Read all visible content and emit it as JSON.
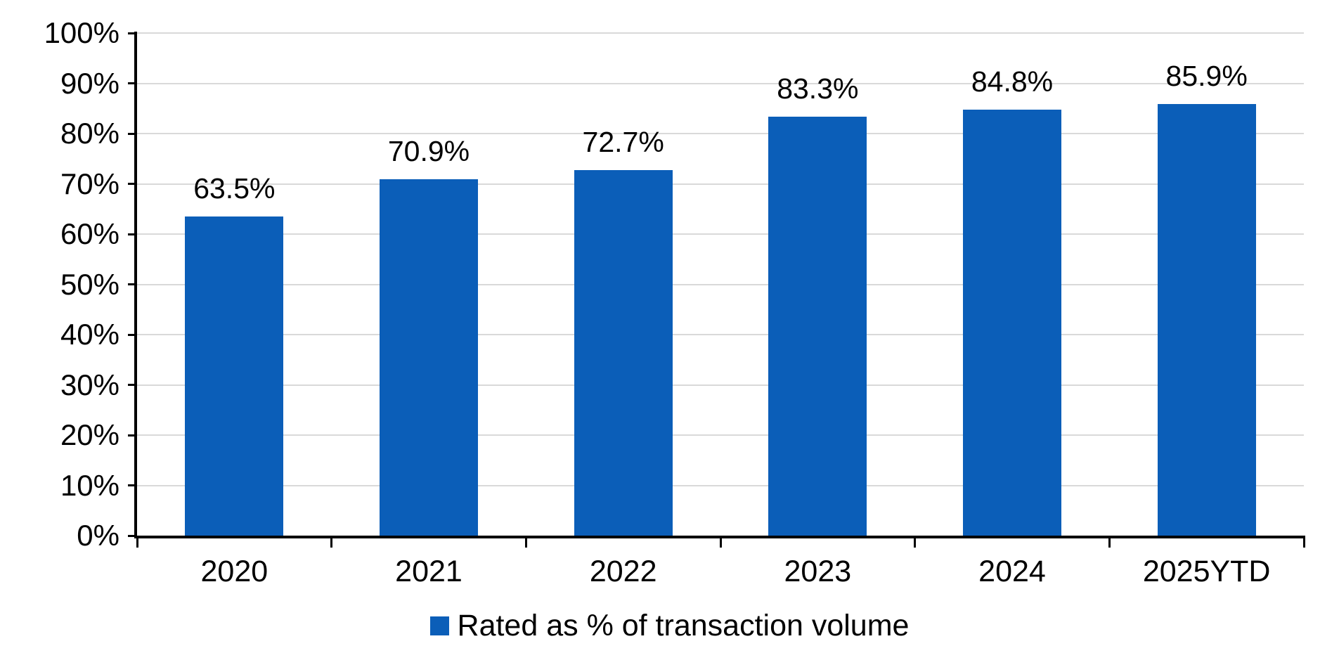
{
  "chart_data": {
    "type": "bar",
    "categories": [
      "2020",
      "2021",
      "2022",
      "2023",
      "2024",
      "2025YTD"
    ],
    "values": [
      63.5,
      70.9,
      72.7,
      83.3,
      84.8,
      85.9
    ],
    "value_labels": [
      "63.5%",
      "70.9%",
      "72.7%",
      "83.3%",
      "84.8%",
      "85.9%"
    ],
    "title": "",
    "xlabel": "",
    "ylabel": "",
    "ylim": [
      0,
      100
    ],
    "ytick_step": 10,
    "ytick_labels": [
      "0%",
      "10%",
      "20%",
      "30%",
      "40%",
      "50%",
      "60%",
      "70%",
      "80%",
      "90%",
      "100%"
    ],
    "grid": true,
    "legend_position": "bottom",
    "legend": [
      {
        "label": "Rated as % of transaction volume",
        "color": "#0b5eb8"
      }
    ],
    "bar_color": "#0b5eb8",
    "gridline_color": "#d9d9d9",
    "axis_color": "#000000",
    "text_color": "#000000"
  }
}
